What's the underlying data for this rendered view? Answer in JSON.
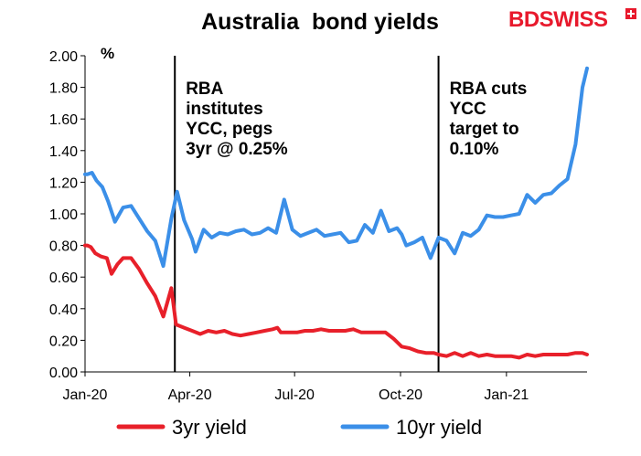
{
  "brand": {
    "name_part1": "BD",
    "name_part2": "SWISS",
    "color": "#e8192c"
  },
  "chart_data": {
    "type": "line",
    "title": "Australia  bond yields",
    "ylabel": "%",
    "xlabel": "",
    "ylim": [
      0.0,
      2.0
    ],
    "y_ticks": [
      "0.00",
      "0.20",
      "0.40",
      "0.60",
      "0.80",
      "1.00",
      "1.20",
      "1.40",
      "1.60",
      "1.80",
      "2.00"
    ],
    "x_ticks": [
      {
        "label": "Jan-20",
        "date": "2020-01-01"
      },
      {
        "label": "Apr-20",
        "date": "2020-04-01"
      },
      {
        "label": "Jul-20",
        "date": "2020-07-01"
      },
      {
        "label": "Oct-20",
        "date": "2020-10-01"
      },
      {
        "label": "Jan-21",
        "date": "2021-01-01"
      }
    ],
    "x_range": [
      "2020-01-01",
      "2021-03-12"
    ],
    "grid": false,
    "legend_position": "bottom",
    "annotations": [
      {
        "date": "2020-03-19",
        "lines": [
          "RBA",
          "institutes",
          "YCC, pegs",
          "3yr @ 0.25%"
        ]
      },
      {
        "date": "2020-11-03",
        "lines": [
          "RBA cuts",
          "YCC",
          "target to",
          "0.10%"
        ]
      }
    ],
    "series": [
      {
        "name": "3yr yield",
        "color": "#e8202a",
        "points": [
          [
            "2020-01-01",
            0.8
          ],
          [
            "2020-01-03",
            0.8
          ],
          [
            "2020-01-06",
            0.79
          ],
          [
            "2020-01-10",
            0.75
          ],
          [
            "2020-01-15",
            0.73
          ],
          [
            "2020-01-20",
            0.72
          ],
          [
            "2020-01-24",
            0.62
          ],
          [
            "2020-01-29",
            0.68
          ],
          [
            "2020-02-03",
            0.72
          ],
          [
            "2020-02-10",
            0.72
          ],
          [
            "2020-02-17",
            0.65
          ],
          [
            "2020-02-24",
            0.56
          ],
          [
            "2020-03-02",
            0.48
          ],
          [
            "2020-03-09",
            0.35
          ],
          [
            "2020-03-16",
            0.53
          ],
          [
            "2020-03-20",
            0.3
          ],
          [
            "2020-03-27",
            0.28
          ],
          [
            "2020-04-03",
            0.26
          ],
          [
            "2020-04-10",
            0.24
          ],
          [
            "2020-04-17",
            0.26
          ],
          [
            "2020-04-24",
            0.25
          ],
          [
            "2020-05-01",
            0.26
          ],
          [
            "2020-05-08",
            0.24
          ],
          [
            "2020-05-15",
            0.23
          ],
          [
            "2020-05-22",
            0.24
          ],
          [
            "2020-05-29",
            0.25
          ],
          [
            "2020-06-05",
            0.26
          ],
          [
            "2020-06-12",
            0.27
          ],
          [
            "2020-06-16",
            0.28
          ],
          [
            "2020-06-19",
            0.25
          ],
          [
            "2020-06-26",
            0.25
          ],
          [
            "2020-07-03",
            0.25
          ],
          [
            "2020-07-10",
            0.26
          ],
          [
            "2020-07-17",
            0.26
          ],
          [
            "2020-07-24",
            0.27
          ],
          [
            "2020-07-31",
            0.26
          ],
          [
            "2020-08-07",
            0.26
          ],
          [
            "2020-08-14",
            0.26
          ],
          [
            "2020-08-21",
            0.27
          ],
          [
            "2020-08-28",
            0.25
          ],
          [
            "2020-09-04",
            0.25
          ],
          [
            "2020-09-11",
            0.25
          ],
          [
            "2020-09-18",
            0.25
          ],
          [
            "2020-09-25",
            0.21
          ],
          [
            "2020-10-02",
            0.16
          ],
          [
            "2020-10-09",
            0.15
          ],
          [
            "2020-10-16",
            0.13
          ],
          [
            "2020-10-23",
            0.12
          ],
          [
            "2020-10-30",
            0.12
          ],
          [
            "2020-11-03",
            0.11
          ],
          [
            "2020-11-10",
            0.1
          ],
          [
            "2020-11-17",
            0.12
          ],
          [
            "2020-11-24",
            0.1
          ],
          [
            "2020-12-01",
            0.12
          ],
          [
            "2020-12-08",
            0.1
          ],
          [
            "2020-12-15",
            0.11
          ],
          [
            "2020-12-22",
            0.1
          ],
          [
            "2020-12-29",
            0.1
          ],
          [
            "2021-01-05",
            0.1
          ],
          [
            "2021-01-12",
            0.09
          ],
          [
            "2021-01-19",
            0.11
          ],
          [
            "2021-01-26",
            0.1
          ],
          [
            "2021-02-02",
            0.11
          ],
          [
            "2021-02-09",
            0.11
          ],
          [
            "2021-02-16",
            0.11
          ],
          [
            "2021-02-23",
            0.11
          ],
          [
            "2021-03-02",
            0.12
          ],
          [
            "2021-03-08",
            0.12
          ],
          [
            "2021-03-12",
            0.11
          ]
        ]
      },
      {
        "name": "10yr yield",
        "color": "#3b8fe8",
        "points": [
          [
            "2020-01-01",
            1.25
          ],
          [
            "2020-01-03",
            1.25
          ],
          [
            "2020-01-07",
            1.26
          ],
          [
            "2020-01-11",
            1.21
          ],
          [
            "2020-01-16",
            1.17
          ],
          [
            "2020-01-21",
            1.08
          ],
          [
            "2020-01-27",
            0.95
          ],
          [
            "2020-02-03",
            1.04
          ],
          [
            "2020-02-10",
            1.05
          ],
          [
            "2020-02-17",
            0.97
          ],
          [
            "2020-02-24",
            0.89
          ],
          [
            "2020-03-02",
            0.83
          ],
          [
            "2020-03-09",
            0.67
          ],
          [
            "2020-03-16",
            0.97
          ],
          [
            "2020-03-21",
            1.14
          ],
          [
            "2020-03-27",
            0.96
          ],
          [
            "2020-04-03",
            0.84
          ],
          [
            "2020-04-06",
            0.76
          ],
          [
            "2020-04-13",
            0.9
          ],
          [
            "2020-04-20",
            0.85
          ],
          [
            "2020-04-27",
            0.88
          ],
          [
            "2020-05-04",
            0.87
          ],
          [
            "2020-05-11",
            0.89
          ],
          [
            "2020-05-18",
            0.9
          ],
          [
            "2020-05-25",
            0.87
          ],
          [
            "2020-06-01",
            0.88
          ],
          [
            "2020-06-08",
            0.91
          ],
          [
            "2020-06-15",
            0.88
          ],
          [
            "2020-06-22",
            1.09
          ],
          [
            "2020-06-29",
            0.9
          ],
          [
            "2020-07-06",
            0.86
          ],
          [
            "2020-07-13",
            0.88
          ],
          [
            "2020-07-20",
            0.9
          ],
          [
            "2020-07-27",
            0.86
          ],
          [
            "2020-08-03",
            0.87
          ],
          [
            "2020-08-10",
            0.88
          ],
          [
            "2020-08-17",
            0.82
          ],
          [
            "2020-08-24",
            0.83
          ],
          [
            "2020-08-31",
            0.93
          ],
          [
            "2020-09-07",
            0.88
          ],
          [
            "2020-09-14",
            1.02
          ],
          [
            "2020-09-21",
            0.89
          ],
          [
            "2020-09-28",
            0.91
          ],
          [
            "2020-10-02",
            0.87
          ],
          [
            "2020-10-06",
            0.8
          ],
          [
            "2020-10-13",
            0.82
          ],
          [
            "2020-10-20",
            0.85
          ],
          [
            "2020-10-27",
            0.72
          ],
          [
            "2020-11-03",
            0.85
          ],
          [
            "2020-11-10",
            0.83
          ],
          [
            "2020-11-17",
            0.75
          ],
          [
            "2020-11-24",
            0.88
          ],
          [
            "2020-12-01",
            0.86
          ],
          [
            "2020-12-08",
            0.9
          ],
          [
            "2020-12-15",
            0.99
          ],
          [
            "2020-12-22",
            0.98
          ],
          [
            "2020-12-29",
            0.98
          ],
          [
            "2021-01-05",
            0.99
          ],
          [
            "2021-01-12",
            1.0
          ],
          [
            "2021-01-19",
            1.12
          ],
          [
            "2021-01-26",
            1.07
          ],
          [
            "2021-02-02",
            1.12
          ],
          [
            "2021-02-09",
            1.13
          ],
          [
            "2021-02-16",
            1.18
          ],
          [
            "2021-02-23",
            1.22
          ],
          [
            "2021-03-02",
            1.44
          ],
          [
            "2021-03-08",
            1.8
          ],
          [
            "2021-03-12",
            1.92
          ]
        ]
      }
    ]
  }
}
